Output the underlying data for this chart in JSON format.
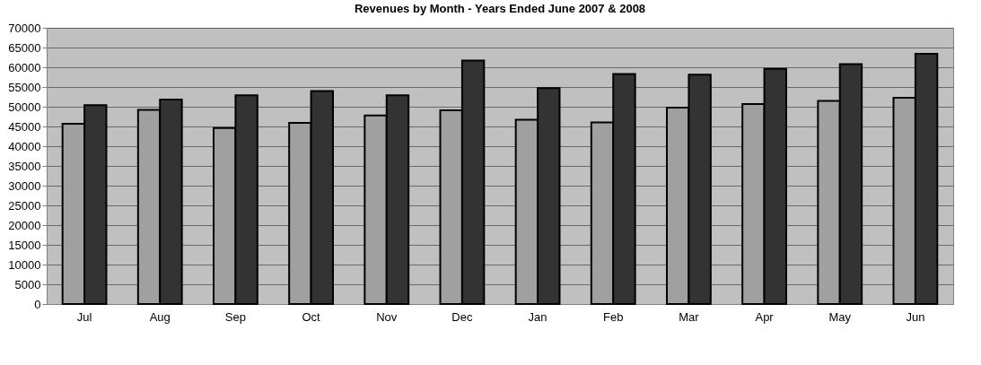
{
  "chart_data": {
    "type": "bar",
    "title": "Revenues by Month - Years Ended June 2007 & 2008",
    "categories": [
      "Jul",
      "Aug",
      "Sep",
      "Oct",
      "Nov",
      "Dec",
      "Jan",
      "Feb",
      "Mar",
      "Apr",
      "May",
      "Jun"
    ],
    "series": [
      {
        "color": "#a0a0a0",
        "values": [
          45700,
          49200,
          44600,
          45900,
          47800,
          49100,
          46700,
          46000,
          49800,
          50700,
          51500,
          52300
        ]
      },
      {
        "color": "#333333",
        "values": [
          50400,
          51800,
          52900,
          54000,
          52900,
          61700,
          54700,
          58300,
          58100,
          59600,
          60800,
          63400
        ]
      }
    ],
    "ylim": [
      0,
      70000
    ],
    "yticks": [
      0,
      5000,
      10000,
      15000,
      20000,
      25000,
      30000,
      35000,
      40000,
      45000,
      50000,
      55000,
      60000,
      65000,
      70000
    ],
    "grid": "y",
    "legend": false
  }
}
